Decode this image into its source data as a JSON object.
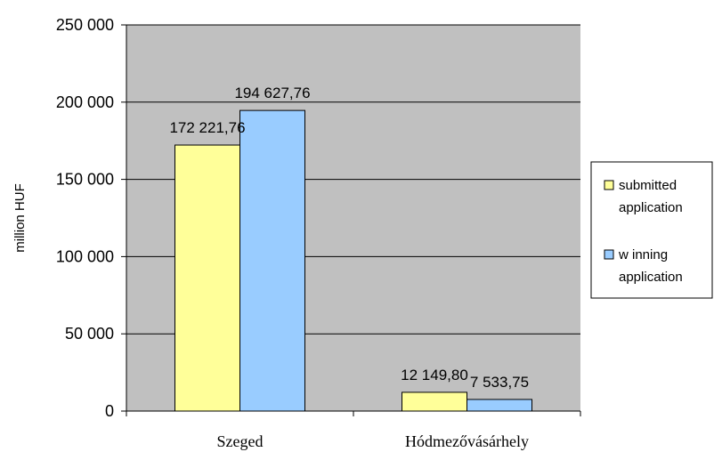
{
  "chart_data": {
    "type": "bar",
    "categories": [
      "Szeged",
      "Hódmezővásárhely"
    ],
    "series": [
      {
        "name": "submitted application",
        "legend_lines": [
          "submitted",
          "application"
        ],
        "values": [
          172221.76,
          12149.8
        ],
        "labels": [
          "172 221,76",
          "12 149,80"
        ],
        "color": "#ffff99"
      },
      {
        "name": "winning application",
        "legend_lines": [
          "w inning",
          "application"
        ],
        "values": [
          194627.76,
          7533.75
        ],
        "labels": [
          "194 627,76",
          "7 533,75"
        ],
        "color": "#99ccff"
      }
    ],
    "ylabel": "million HUF",
    "ylim": [
      0,
      250000
    ],
    "yticks": [
      0,
      50000,
      100000,
      150000,
      200000,
      250000
    ],
    "ytick_labels": [
      "0",
      "50 000",
      "100 000",
      "150 000",
      "200 000",
      "250 000"
    ],
    "grid": true,
    "plot_background": "#c0c0c0",
    "legend_position": "right"
  }
}
